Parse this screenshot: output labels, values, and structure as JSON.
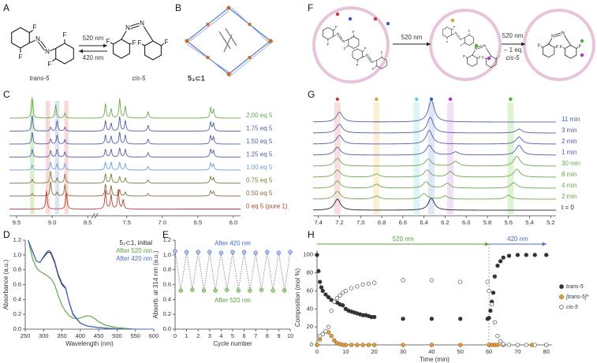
{
  "panel_labels": [
    "A",
    "B",
    "C",
    "D",
    "E",
    "F",
    "G",
    "H"
  ],
  "panel_a": {
    "molecules": [
      {
        "atoms": [
          "F",
          "F",
          "N",
          "N",
          "F",
          "F"
        ]
      },
      {
        "atoms": [
          "F",
          "F",
          "N",
          "N",
          "F",
          "F"
        ]
      }
    ],
    "forward": "520 nm",
    "backward": "420 nm",
    "trans_label": "trans-5",
    "cis_label": "cis-5"
  },
  "panel_b": {
    "label": "5₃⊂1"
  },
  "panel_f": {
    "molecules": [
      {
        "atoms": [
          "F",
          "F",
          "N",
          "N",
          "F",
          "F"
        ]
      },
      {
        "atoms": [
          "F",
          "F",
          "N",
          "N",
          "F",
          "F"
        ]
      },
      {
        "atoms": [
          "F",
          "F",
          "N",
          "N",
          "F",
          "F"
        ]
      },
      {
        "atoms": [
          "F",
          "F",
          "N",
          "N",
          "F",
          "F"
        ]
      },
      {
        "atoms": [
          "F",
          "F",
          "N",
          "N",
          "F",
          "F"
        ]
      }
    ],
    "step1": "520 nm",
    "step2": "520 nm",
    "step2_sub": "− 1 eq",
    "step2_product": "cis-5"
  },
  "chart_data": [
    {
      "type": "nmr",
      "xlim": [
        9.6,
        5.9
      ],
      "axis_break": [
        8.4,
        7.95
      ],
      "xticks": [
        9.5,
        {
          "value": 9,
          "label": "9.0"
        },
        8.5,
        7.5,
        {
          "value": 7,
          "label": "7.0"
        },
        6.5,
        {
          "value": 6,
          "label": "6.0"
        }
      ],
      "peak_width": 0.012,
      "highlights": [
        {
          "x": 9.28,
          "color": "#d4ebc6"
        },
        {
          "x": 9.06,
          "color": "#f4d4d4"
        },
        {
          "x": 8.93,
          "color": "#d8def2"
        },
        {
          "x": 8.8,
          "color": "#f4d4d4"
        }
      ],
      "series": [
        {
          "name": "2.00 eq 5",
          "color": "#6aaa4a",
          "x": [
            9.28,
            8.95,
            8.82,
            7.8,
            7.72,
            7.6,
            7.52,
            7.2,
            6.32,
            6.28
          ],
          "values": [
            32,
            20,
            8,
            22,
            14,
            30,
            18,
            10,
            16,
            13
          ]
        },
        {
          "name": "1.75 eq 5",
          "color": "#4f5fa6",
          "x": [
            9.28,
            9.02,
            8.93,
            8.82,
            7.8,
            7.72,
            7.6,
            7.52,
            7.2,
            6.32,
            6.28
          ],
          "values": [
            24,
            6,
            16,
            6,
            16,
            12,
            22,
            16,
            9,
            14,
            12
          ]
        },
        {
          "name": "1.50 eq 5",
          "color": "#4f5fa6",
          "x": [
            9.28,
            9.02,
            8.93,
            8.82,
            7.8,
            7.72,
            7.6,
            7.52,
            7.2,
            6.32,
            6.28
          ],
          "values": [
            18,
            8,
            14,
            7,
            14,
            12,
            18,
            14,
            8,
            13,
            11
          ]
        },
        {
          "name": "1.25 eq 5",
          "color": "#4f5fa6",
          "x": [
            9.28,
            9.02,
            8.93,
            8.82,
            7.8,
            7.72,
            7.6,
            7.52,
            7.2,
            6.32,
            6.28
          ],
          "values": [
            12,
            10,
            12,
            8,
            12,
            12,
            14,
            12,
            7,
            12,
            10
          ]
        },
        {
          "name": "1.00 eq 5",
          "color": "#6a9ee0",
          "x": [
            9.28,
            9.02,
            8.93,
            8.82,
            7.8,
            7.72,
            7.6,
            7.52,
            7.2,
            6.32,
            6.28
          ],
          "values": [
            8,
            12,
            10,
            10,
            12,
            12,
            12,
            10,
            6,
            11,
            9
          ]
        },
        {
          "name": "0.75 eq 5",
          "color": "#7d7a3c",
          "x": [
            9.28,
            9.02,
            8.93,
            8.82,
            7.8,
            7.72,
            7.6,
            7.52,
            7.2,
            6.32,
            6.28
          ],
          "values": [
            6,
            18,
            8,
            14,
            14,
            14,
            10,
            8,
            5,
            10,
            8
          ]
        },
        {
          "name": "0.50 eq 5",
          "color": "#8a6a3a",
          "x": [
            9.28,
            9.02,
            8.93,
            8.82,
            7.8,
            7.72,
            7.6,
            7.52,
            7.2,
            6.32,
            6.28
          ],
          "values": [
            4,
            22,
            6,
            18,
            18,
            16,
            10,
            6,
            4,
            8,
            7
          ]
        },
        {
          "name": "0 eq 5 (pure 1)",
          "color": "#b5422f",
          "x": [
            9.08,
            8.8,
            7.8,
            7.72,
            7.62,
            7.55
          ],
          "values": [
            28,
            26,
            28,
            22,
            30,
            14
          ]
        }
      ]
    },
    {
      "type": "line",
      "xlabel": "Wavelength (nm)",
      "ylabel": "Absorbance (a.u.)",
      "xlim": [
        250,
        600
      ],
      "xticks": [
        250,
        300,
        350,
        400,
        450,
        500,
        550,
        600
      ],
      "ylim": [
        0,
        1.2
      ],
      "yticks": [
        {
          "value": 0,
          "label": "0.0"
        },
        0.2,
        0.4,
        0.6,
        0.8,
        {
          "value": 1,
          "label": "1.0"
        },
        1.2
      ],
      "legend": "top-right",
      "series": [
        {
          "name": "5₃⊂1, initial",
          "color": "#222222",
          "x": [
            258,
            270,
            280,
            290,
            300,
            310,
            315,
            320,
            330,
            340,
            350,
            360,
            370,
            380,
            400,
            420,
            450,
            480,
            520,
            600
          ],
          "values": [
            1.2,
            1.05,
            0.92,
            0.9,
            0.97,
            1.03,
            1.04,
            1.02,
            0.9,
            0.72,
            0.6,
            0.55,
            0.35,
            0.2,
            0.08,
            0.04,
            0.02,
            0.01,
            0,
            0
          ]
        },
        {
          "name": "After 520 nm",
          "color": "#5aa040",
          "x": [
            258,
            270,
            280,
            290,
            300,
            310,
            320,
            330,
            340,
            350,
            360,
            370,
            380,
            390,
            400,
            410,
            420,
            430,
            440,
            450,
            470,
            500,
            550,
            600
          ],
          "values": [
            1.2,
            0.95,
            0.83,
            0.78,
            0.75,
            0.72,
            0.68,
            0.6,
            0.45,
            0.32,
            0.24,
            0.18,
            0.15,
            0.14,
            0.15,
            0.17,
            0.18,
            0.17,
            0.14,
            0.1,
            0.05,
            0.02,
            0,
            0
          ]
        },
        {
          "name": "After 420 nm",
          "color": "#4a6ad0",
          "x": [
            258,
            270,
            280,
            290,
            300,
            310,
            315,
            320,
            330,
            340,
            350,
            360,
            370,
            380,
            400,
            420,
            450,
            480,
            520,
            600
          ],
          "values": [
            1.2,
            1.04,
            0.92,
            0.9,
            0.98,
            1.05,
            1.06,
            1.04,
            0.92,
            0.74,
            0.62,
            0.56,
            0.36,
            0.21,
            0.08,
            0.04,
            0.02,
            0.01,
            0,
            0
          ]
        }
      ]
    },
    {
      "type": "scatter",
      "xlabel": "Cycle number",
      "ylabel": "Absorb. at 314 nm (a.u.)",
      "xlim": [
        0,
        10
      ],
      "xticks": [
        0,
        1,
        2,
        3,
        4,
        5,
        6,
        7,
        8,
        9,
        10
      ],
      "ylim": [
        0,
        1.2
      ],
      "yticks": [
        {
          "value": 0,
          "label": "0.0"
        },
        0.2,
        0.4,
        0.6,
        0.8,
        {
          "value": 1,
          "label": "1.0"
        },
        1.2
      ],
      "connect": "dotted",
      "series": [
        {
          "name": "After 420 nm",
          "color": "#4a6ad0",
          "fill": "#b4c2f2",
          "x": [
            0,
            1,
            2,
            3,
            4,
            5,
            6,
            7,
            8,
            9,
            10
          ],
          "values": [
            1.05,
            1.04,
            1.04,
            1.04,
            1.03,
            1.04,
            1.04,
            1.03,
            1.04,
            1.03,
            1.04
          ]
        },
        {
          "name": "After 520 nm",
          "color": "#5a9a40",
          "fill": "#a6d486",
          "x": [
            0.5,
            1.5,
            2.5,
            3.5,
            4.5,
            5.5,
            6.5,
            7.5,
            8.5,
            9.5
          ],
          "values": [
            0.52,
            0.53,
            0.52,
            0.52,
            0.53,
            0.52,
            0.52,
            0.53,
            0.52,
            0.52
          ]
        }
      ]
    },
    {
      "type": "nmr",
      "xlim": [
        7.45,
        5.15
      ],
      "xticks": [
        7.4,
        7.2,
        {
          "value": 7,
          "label": "7.0"
        },
        6.8,
        6.6,
        6.4,
        6.2,
        {
          "value": 6,
          "label": "6.0"
        },
        5.8,
        5.6,
        5.4,
        5.2
      ],
      "peak_width": 0.035,
      "highlights": [
        {
          "x": 7.22,
          "color": "#f6d9d9",
          "marker": "#c83c3c"
        },
        {
          "x": 6.85,
          "color": "#fbedcc",
          "marker": "#e0a020"
        },
        {
          "x": 6.47,
          "color": "#d8f2f6",
          "marker": "#60d0e0"
        },
        {
          "x": 6.33,
          "color": "#d8e2f6",
          "marker": "#3060c0"
        },
        {
          "x": 6.15,
          "color": "#f0d8f6",
          "marker": "#b030d0"
        },
        {
          "x": 5.58,
          "color": "#daf0ce",
          "marker": "#50b030"
        }
      ],
      "series": [
        {
          "name": "11 min",
          "color": "#4f5fa6",
          "x": [
            7.2,
            6.33
          ],
          "values": [
            25,
            55
          ]
        },
        {
          "name": "3 min",
          "color": "#4f5fa6",
          "x": [
            7.2,
            6.34,
            5.5
          ],
          "values": [
            22,
            40,
            10
          ]
        },
        {
          "name": "2 min",
          "color": "#4f5fa6",
          "x": [
            7.2,
            6.35,
            5.5
          ],
          "values": [
            22,
            35,
            18
          ]
        },
        {
          "name": "1 min",
          "color": "#4f5fa6",
          "x": [
            7.22,
            6.35,
            6.1,
            5.5
          ],
          "values": [
            20,
            25,
            8,
            25
          ]
        },
        {
          "name": "30 min",
          "color": "#6aaa4a",
          "x": [
            7.22,
            6.36,
            6.1,
            5.52
          ],
          "values": [
            20,
            18,
            12,
            25
          ]
        },
        {
          "name": "8 min",
          "color": "#6aaa4a",
          "x": [
            7.22,
            6.85,
            6.37,
            6.15,
            5.52
          ],
          "values": [
            18,
            8,
            18,
            14,
            20
          ]
        },
        {
          "name": "4 min",
          "color": "#6aaa4a",
          "x": [
            7.22,
            6.85,
            6.38,
            6.18,
            5.55
          ],
          "values": [
            18,
            10,
            16,
            12,
            14
          ]
        },
        {
          "name": "2 min",
          "color": "#6aaa4a",
          "x": [
            7.22,
            6.85,
            6.4,
            6.2,
            5.6
          ],
          "values": [
            20,
            8,
            14,
            8,
            10
          ]
        },
        {
          "name": "t = 0",
          "color": "#222222",
          "x": [
            7.22,
            6.33
          ],
          "values": [
            28,
            30
          ]
        }
      ]
    },
    {
      "type": "scatter",
      "xlabel": "Time (min)",
      "ylabel": "Composition (mol %)",
      "xlim": [
        0,
        82
      ],
      "xticks": [
        0,
        10,
        20,
        30,
        40,
        50,
        60,
        70,
        80
      ],
      "ylim": [
        0,
        105
      ],
      "yticks": [
        0,
        20,
        40,
        60,
        80,
        100
      ],
      "legend": "right",
      "annotations": [
        {
          "text": "520 nm",
          "from": 0,
          "to": 60,
          "color": "#5aa040"
        },
        {
          "text": "420 nm",
          "from": 60,
          "to": 80,
          "color": "#4a6ad0"
        }
      ],
      "series": [
        {
          "name": "trans-5",
          "color": "#333333",
          "fill": "#333333",
          "x": [
            0,
            0.5,
            1,
            1.5,
            2,
            3,
            4,
            5,
            6,
            7,
            8,
            9,
            10,
            11,
            12,
            13,
            14,
            15,
            16,
            17,
            18,
            19,
            20,
            30,
            40,
            50,
            59.5,
            60,
            60.5,
            61,
            61.5,
            62,
            63,
            64,
            65,
            67,
            70,
            73,
            76,
            80
          ],
          "values": [
            100,
            82,
            70,
            64,
            60,
            56,
            53,
            50,
            48,
            47,
            45,
            44,
            40,
            38,
            37,
            36,
            35,
            34,
            33,
            33,
            32,
            31,
            31,
            29,
            29,
            29,
            29,
            30,
            38,
            48,
            58,
            76,
            88,
            93,
            97,
            99,
            100,
            100,
            100,
            100
          ]
        },
        {
          "name": "[trans-5]*",
          "color": "#8a5a20",
          "fill": "#e8a040",
          "x": [
            0,
            1,
            2,
            3,
            4,
            5,
            6,
            7,
            8,
            9,
            10,
            12,
            14,
            16,
            18,
            20,
            30,
            40,
            50,
            60,
            61,
            62,
            63,
            65,
            70,
            75,
            80
          ],
          "values": [
            0,
            6,
            12,
            15,
            14,
            10,
            5,
            2,
            1,
            0,
            0,
            0,
            0,
            0,
            0,
            0,
            0,
            0,
            0,
            0,
            0,
            0,
            0,
            0,
            0,
            0,
            0
          ]
        },
        {
          "name": "cis-5",
          "color": "#555555",
          "fill": "#ffffff",
          "x": [
            1,
            2,
            3,
            4,
            5,
            6,
            7,
            8,
            9,
            10,
            12,
            14,
            16,
            18,
            20,
            30,
            40,
            50,
            59.5,
            60,
            61,
            62,
            63,
            64,
            65,
            67,
            70,
            73,
            76,
            80
          ],
          "values": [
            10,
            12,
            15,
            20,
            38,
            48,
            52,
            55,
            58,
            60,
            63,
            65,
            67,
            68,
            69,
            72,
            72,
            70,
            70,
            60,
            45,
            25,
            10,
            4,
            1,
            0,
            0,
            0,
            0,
            0
          ]
        }
      ]
    }
  ]
}
